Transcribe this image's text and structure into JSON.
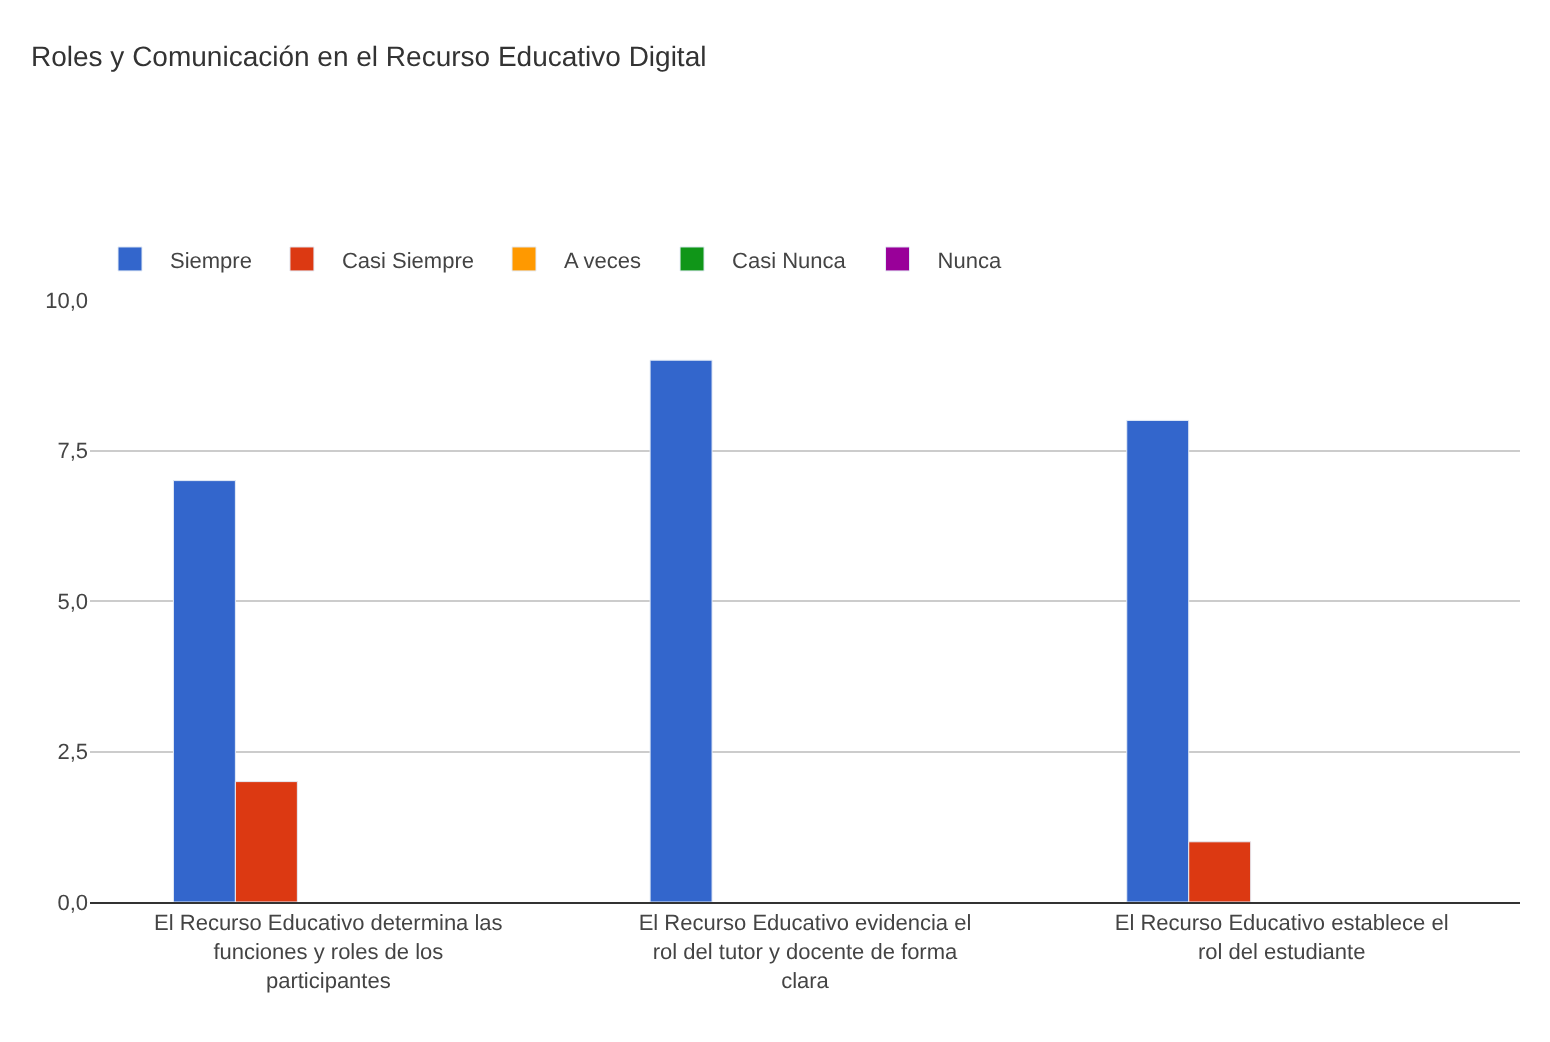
{
  "chart_data": {
    "type": "bar",
    "title": "Roles y Comunicación en el Recurso Educativo Digital",
    "categories": [
      "El Recurso Educativo determina las funciones y roles de los participantes",
      "El Recurso Educativo evidencia el rol del tutor y docente de forma clara",
      "El Recurso Educativo establece el rol del estudiante"
    ],
    "series": [
      {
        "name": "Siempre",
        "color": "#3366cc",
        "values": [
          7,
          9,
          8
        ]
      },
      {
        "name": "Casi Siempre",
        "color": "#dc3912",
        "values": [
          2,
          null,
          1
        ]
      },
      {
        "name": "A veces",
        "color": "#ff9900",
        "values": [
          null,
          null,
          null
        ]
      },
      {
        "name": "Casi Nunca",
        "color": "#109618",
        "values": [
          null,
          null,
          null
        ]
      },
      {
        "name": "Nunca",
        "color": "#990099",
        "values": [
          null,
          null,
          null
        ]
      }
    ],
    "ylim": [
      0,
      10
    ],
    "yticks": [
      {
        "value": 0,
        "label": "0,0"
      },
      {
        "value": 2.5,
        "label": "2,5"
      },
      {
        "value": 5,
        "label": "5,0"
      },
      {
        "value": 7.5,
        "label": "7,5"
      },
      {
        "value": 10,
        "label": "10,0"
      }
    ],
    "grid": "y",
    "legend": "top left"
  }
}
